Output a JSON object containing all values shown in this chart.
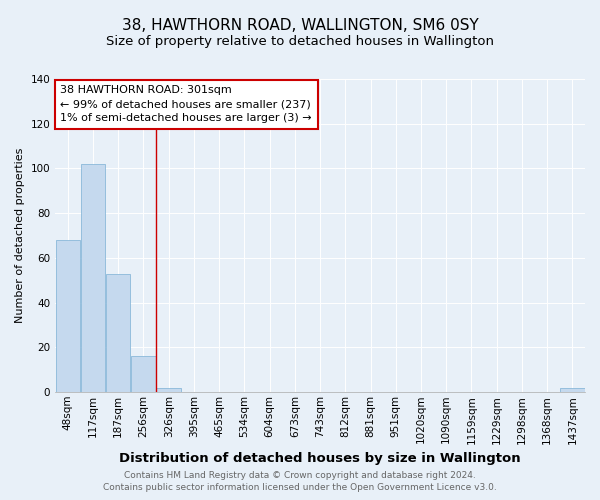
{
  "title": "38, HAWTHORN ROAD, WALLINGTON, SM6 0SY",
  "subtitle": "Size of property relative to detached houses in Wallington",
  "xlabel": "Distribution of detached houses by size in Wallington",
  "ylabel": "Number of detached properties",
  "categories": [
    "48sqm",
    "117sqm",
    "187sqm",
    "256sqm",
    "326sqm",
    "395sqm",
    "465sqm",
    "534sqm",
    "604sqm",
    "673sqm",
    "743sqm",
    "812sqm",
    "881sqm",
    "951sqm",
    "1020sqm",
    "1090sqm",
    "1159sqm",
    "1229sqm",
    "1298sqm",
    "1368sqm",
    "1437sqm"
  ],
  "values": [
    68,
    102,
    53,
    16,
    2,
    0,
    0,
    0,
    0,
    0,
    0,
    0,
    0,
    0,
    0,
    0,
    0,
    0,
    0,
    0,
    2
  ],
  "bar_color": "#c5d9ee",
  "bar_edge_color": "#7bafd4",
  "red_line_x": 3.5,
  "ylim": [
    0,
    140
  ],
  "yticks": [
    0,
    20,
    40,
    60,
    80,
    100,
    120,
    140
  ],
  "annotation_text_line1": "38 HAWTHORN ROAD: 301sqm",
  "annotation_text_line2": "← 99% of detached houses are smaller (237)",
  "annotation_text_line3": "1% of semi-detached houses are larger (3) →",
  "annotation_box_color": "#ffffff",
  "annotation_box_edge": "#cc0000",
  "footer_line1": "Contains HM Land Registry data © Crown copyright and database right 2024.",
  "footer_line2": "Contains public sector information licensed under the Open Government Licence v3.0.",
  "background_color": "#e8f0f8",
  "title_fontsize": 11,
  "subtitle_fontsize": 9.5,
  "xlabel_fontsize": 9.5,
  "ylabel_fontsize": 8,
  "tick_fontsize": 7.5,
  "annotation_fontsize": 8,
  "footer_fontsize": 6.5,
  "grid_color": "#ffffff",
  "bar_linewidth": 0.5
}
